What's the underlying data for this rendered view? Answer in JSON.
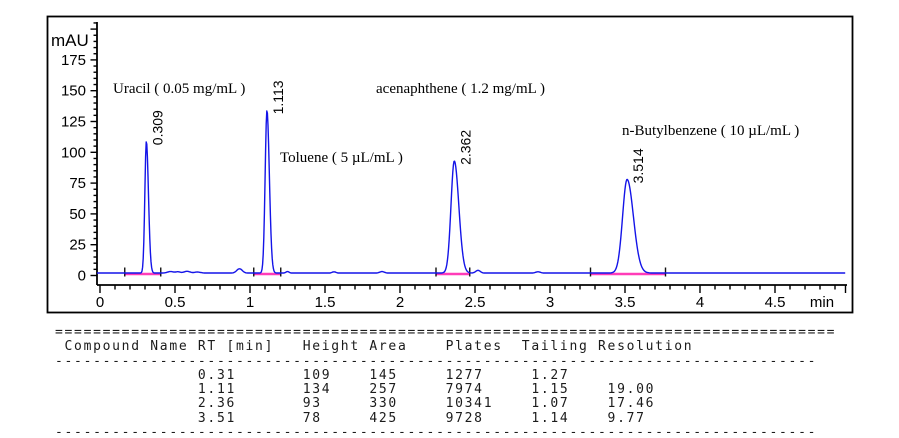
{
  "chart_data": {
    "type": "line",
    "title": "",
    "x_axis": {
      "label": "min",
      "min": 0,
      "max": 4.9,
      "major_tick_step": 0.5,
      "minor_tick_step": 0.1,
      "major_tick_labels": [
        "0",
        "0.5",
        "1",
        "1.5",
        "2",
        "2.5",
        "3",
        "3.5",
        "4",
        "4.5"
      ]
    },
    "y_axis": {
      "label": "mAU",
      "min": 0,
      "max": 190,
      "major_tick_step": 25,
      "minor_tick_step": 5,
      "major_tick_labels": [
        "0",
        "25",
        "50",
        "75",
        "100",
        "125",
        "150",
        "175"
      ]
    },
    "grid": "off",
    "baseline_mau": 2,
    "trace_color": "#1414e8",
    "integration_baseline_color": "#ff3cb8",
    "peaks": [
      {
        "rt": 0.309,
        "rt_label": "0.309",
        "height_mau": 107,
        "sigma_left": 0.01,
        "sigma_right": 0.014,
        "integration_start": 0.165,
        "integration_end": 0.405
      },
      {
        "rt": 1.113,
        "rt_label": "1.113",
        "height_mau": 132,
        "sigma_left": 0.012,
        "sigma_right": 0.016,
        "integration_start": 1.025,
        "integration_end": 1.205
      },
      {
        "rt": 2.362,
        "rt_label": "2.362",
        "height_mau": 91,
        "sigma_left": 0.022,
        "sigma_right": 0.03,
        "integration_start": 2.24,
        "integration_end": 2.465
      },
      {
        "rt": 3.514,
        "rt_label": "3.514",
        "height_mau": 76,
        "sigma_left": 0.03,
        "sigma_right": 0.042,
        "integration_start": 3.27,
        "integration_end": 3.77
      }
    ],
    "bumps": [
      {
        "t": 0.47,
        "height_mau": 1.2,
        "sigma": 0.02
      },
      {
        "t": 0.52,
        "height_mau": 1.0,
        "sigma": 0.015
      },
      {
        "t": 0.58,
        "height_mau": 1.4,
        "sigma": 0.02
      },
      {
        "t": 0.65,
        "height_mau": 0.8,
        "sigma": 0.02
      },
      {
        "t": 0.93,
        "height_mau": 3.5,
        "sigma": 0.018
      },
      {
        "t": 1.25,
        "height_mau": 1.2,
        "sigma": 0.01
      },
      {
        "t": 1.56,
        "height_mau": 1.0,
        "sigma": 0.012
      },
      {
        "t": 1.88,
        "height_mau": 1.2,
        "sigma": 0.015
      },
      {
        "t": 2.52,
        "height_mau": 2.2,
        "sigma": 0.015
      },
      {
        "t": 2.92,
        "height_mau": 1.0,
        "sigma": 0.015
      }
    ],
    "annotations": [
      {
        "text": "Uracil ( 0.05 mg/mL )",
        "t": 0.087,
        "mau": 148
      },
      {
        "text": "Toluene ( 5 µL/mL )",
        "t": 1.2,
        "mau": 92
      },
      {
        "text": "acenaphthene ( 1.2 mg/mL )",
        "t": 1.84,
        "mau": 148
      },
      {
        "text": "n-Butylbenzene ( 10 µL/mL )",
        "t": 3.48,
        "mau": 114
      }
    ]
  },
  "table": {
    "headers": [
      "Compound Name",
      "RT [min]",
      "Height",
      "Area",
      "Plates",
      "Tailing",
      "Resolution"
    ],
    "rows": [
      {
        "compound": "",
        "rt": "0.31",
        "height": "109",
        "area": "145",
        "plates": "1277",
        "tailing": "1.27",
        "resolution": ""
      },
      {
        "compound": "",
        "rt": "1.11",
        "height": "134",
        "area": "257",
        "plates": "7974",
        "tailing": "1.15",
        "resolution": "19.00"
      },
      {
        "compound": "",
        "rt": "2.36",
        "height": "93",
        "area": "330",
        "plates": "10341",
        "tailing": "1.07",
        "resolution": "17.46"
      },
      {
        "compound": "",
        "rt": "3.51",
        "height": "78",
        "area": "425",
        "plates": "9728",
        "tailing": "1.14",
        "resolution": "9.77"
      }
    ]
  }
}
